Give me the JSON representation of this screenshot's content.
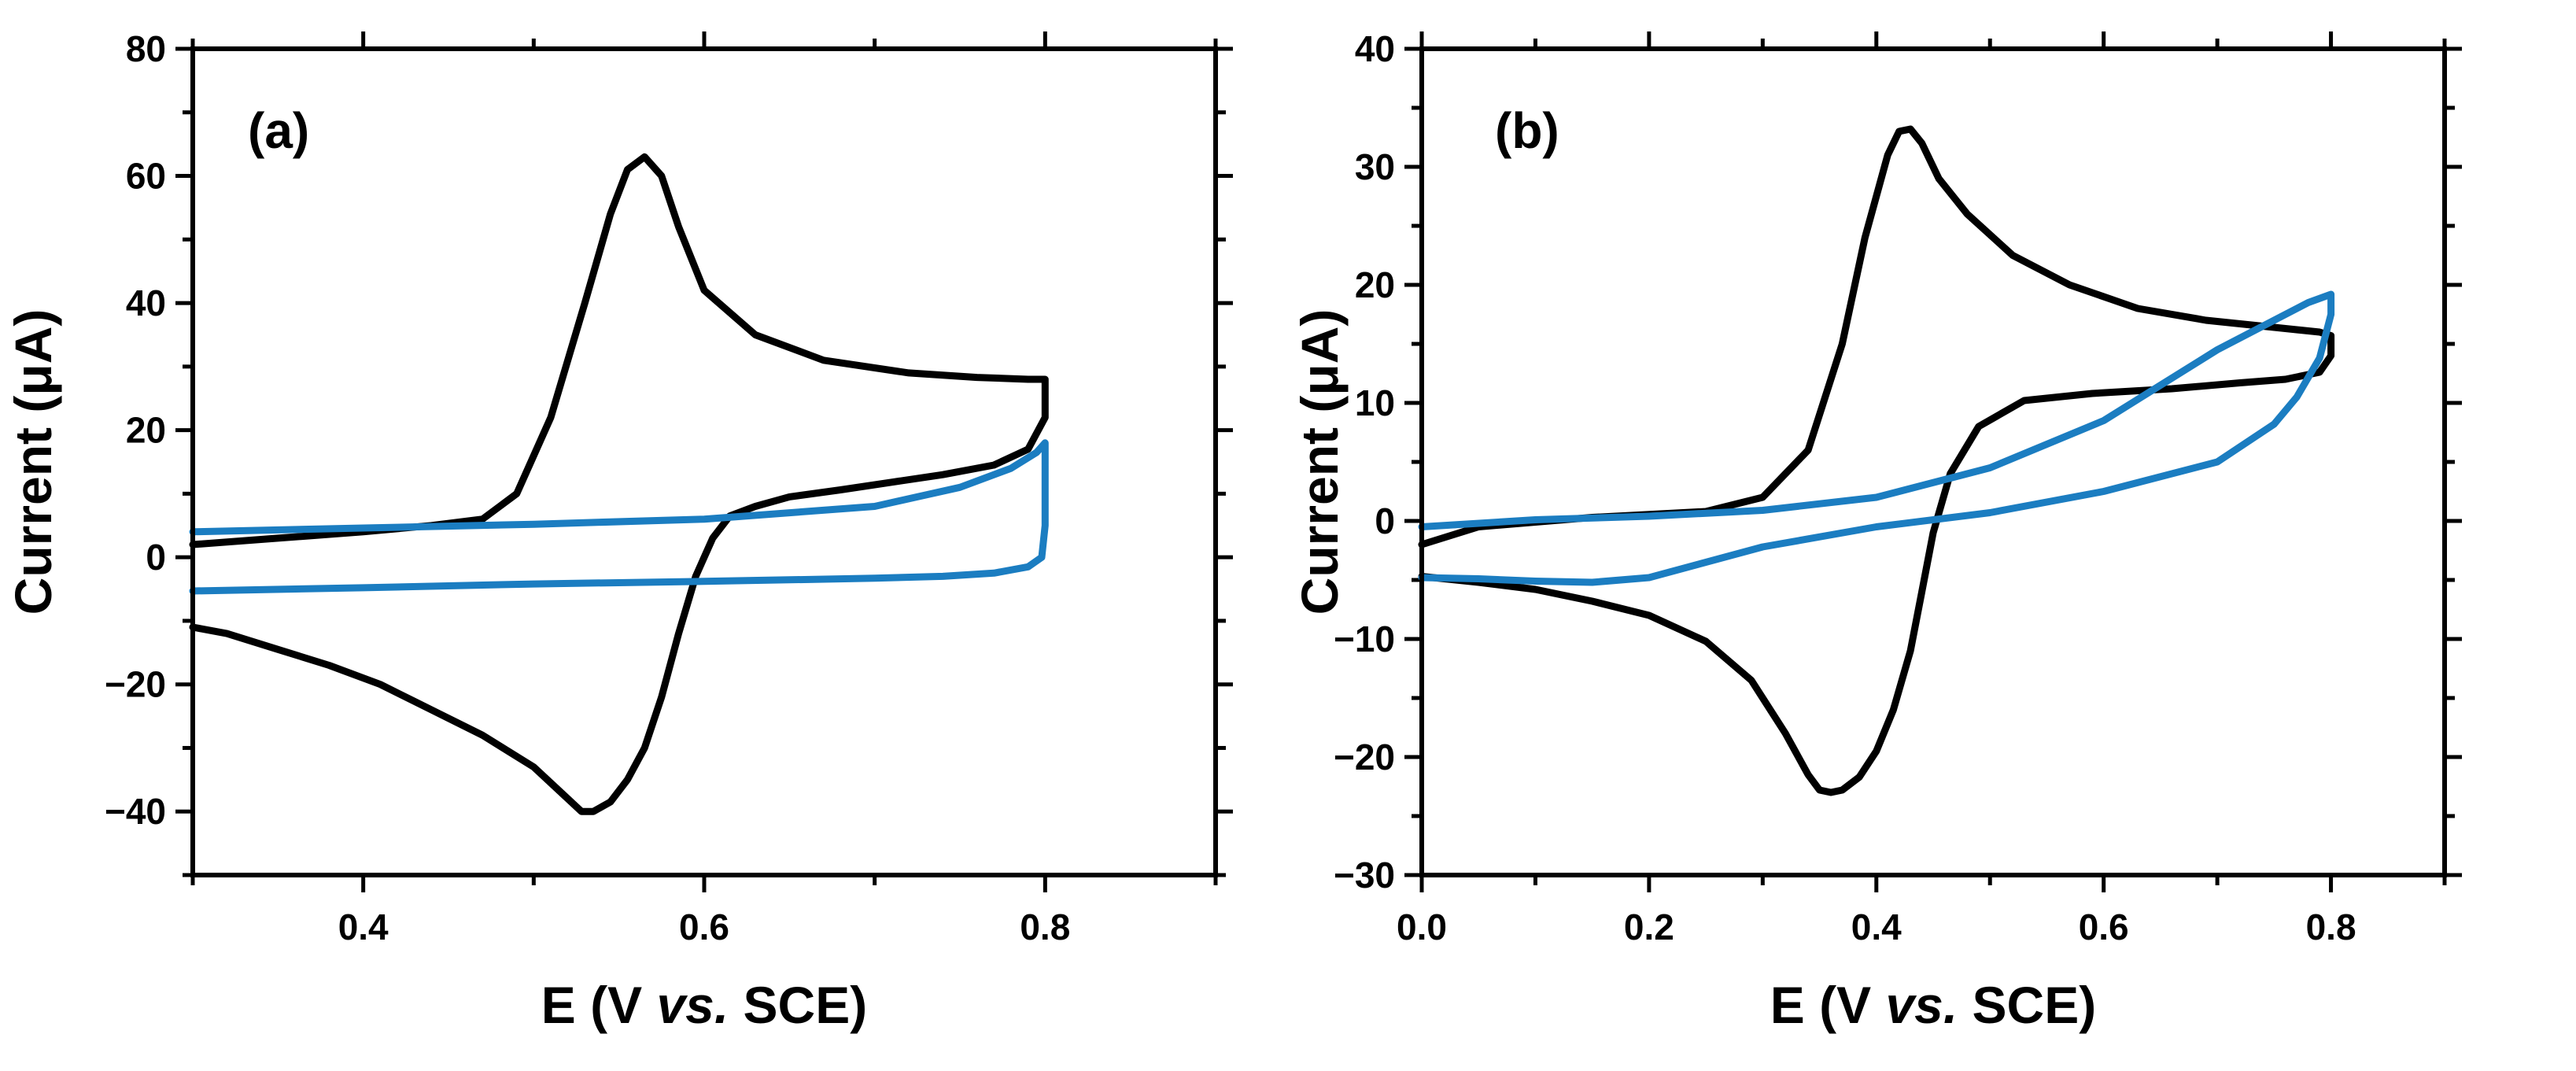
{
  "chart_data": [
    {
      "type": "line",
      "panel_label": "(a)",
      "xlabel": "E (V vs. SCE)",
      "xlabel_parts": {
        "prefix": "E (V ",
        "italic": "vs.",
        "suffix": " SCE)"
      },
      "ylabel": "Current (μA)",
      "xlim": [
        0.3,
        0.9
      ],
      "ylim": [
        -50,
        80
      ],
      "x_major_ticks": [
        0.4,
        0.6,
        0.8
      ],
      "x_tick_labels": [
        "0.4",
        "0.6",
        "0.8"
      ],
      "y_major_ticks": [
        -40,
        -20,
        0,
        20,
        40,
        60,
        80
      ],
      "y_tick_labels": [
        "−40",
        "−20",
        "0",
        "20",
        "40",
        "60",
        "80"
      ],
      "series": [
        {
          "name": "black",
          "color": "#000000",
          "x": [
            0.3,
            0.35,
            0.4,
            0.44,
            0.47,
            0.49,
            0.51,
            0.53,
            0.545,
            0.555,
            0.565,
            0.575,
            0.585,
            0.6,
            0.63,
            0.67,
            0.72,
            0.76,
            0.79,
            0.8,
            0.8,
            0.8,
            0.79,
            0.77,
            0.74,
            0.71,
            0.68,
            0.65,
            0.63,
            0.615,
            0.605,
            0.595,
            0.585,
            0.575,
            0.565,
            0.555,
            0.545,
            0.535,
            0.528,
            0.52,
            0.5,
            0.47,
            0.44,
            0.41,
            0.38,
            0.35,
            0.32,
            0.3
          ],
          "y": [
            2,
            3,
            4,
            5,
            6,
            10,
            22,
            40,
            54,
            61,
            63,
            60,
            52,
            42,
            35,
            31,
            29,
            28.3,
            28,
            28,
            26,
            22,
            17,
            14.5,
            13,
            11.8,
            10.6,
            9.5,
            8,
            6.5,
            3,
            -3,
            -12,
            -22,
            -30,
            -35,
            -38.5,
            -40,
            -40,
            -38,
            -33,
            -28,
            -24,
            -20,
            -17,
            -14.5,
            -12,
            -11
          ]
        },
        {
          "name": "blue",
          "color": "#1B7DC1",
          "x": [
            0.3,
            0.4,
            0.5,
            0.6,
            0.7,
            0.75,
            0.78,
            0.795,
            0.8,
            0.8,
            0.798,
            0.79,
            0.77,
            0.74,
            0.7,
            0.6,
            0.5,
            0.4,
            0.3
          ],
          "y": [
            4,
            4.6,
            5.2,
            6,
            8,
            11,
            14,
            16.5,
            18,
            5,
            0,
            -1.5,
            -2.5,
            -3,
            -3.3,
            -3.8,
            -4.2,
            -4.8,
            -5.3
          ]
        }
      ]
    },
    {
      "type": "line",
      "panel_label": "(b)",
      "xlabel": "E (V vs. SCE)",
      "xlabel_parts": {
        "prefix": "E (V ",
        "italic": "vs.",
        "suffix": " SCE)"
      },
      "ylabel": "Current (μA)",
      "xlim": [
        0.0,
        0.9
      ],
      "ylim": [
        -30,
        40
      ],
      "x_major_ticks": [
        0.0,
        0.2,
        0.4,
        0.6,
        0.8
      ],
      "x_tick_labels": [
        "0.0",
        "0.2",
        "0.4",
        "0.6",
        "0.8"
      ],
      "y_major_ticks": [
        -30,
        -20,
        -10,
        0,
        10,
        20,
        30,
        40
      ],
      "y_tick_labels": [
        "−30",
        "−20",
        "−10",
        "0",
        "10",
        "20",
        "30",
        "40"
      ],
      "series": [
        {
          "name": "black",
          "color": "#000000",
          "x": [
            0.0,
            0.05,
            0.15,
            0.25,
            0.3,
            0.34,
            0.37,
            0.39,
            0.41,
            0.42,
            0.43,
            0.44,
            0.455,
            0.48,
            0.52,
            0.57,
            0.63,
            0.69,
            0.75,
            0.79,
            0.8,
            0.8,
            0.79,
            0.76,
            0.72,
            0.66,
            0.59,
            0.53,
            0.49,
            0.465,
            0.45,
            0.44,
            0.43,
            0.415,
            0.4,
            0.385,
            0.37,
            0.36,
            0.35,
            0.34,
            0.32,
            0.29,
            0.25,
            0.2,
            0.15,
            0.1,
            0.05,
            0.0
          ],
          "y": [
            -2,
            -0.5,
            0.3,
            0.8,
            2,
            6,
            15,
            24,
            31,
            33,
            33.2,
            32,
            29,
            26,
            22.5,
            20,
            18,
            17,
            16.4,
            16,
            15.7,
            14,
            12.6,
            12,
            11.7,
            11.2,
            10.8,
            10.2,
            8,
            4,
            -1,
            -6,
            -11,
            -16,
            -19.5,
            -21.7,
            -22.8,
            -23,
            -22.8,
            -21.5,
            -18,
            -13.5,
            -10.2,
            -8,
            -6.8,
            -5.8,
            -5.2,
            -4.7
          ]
        },
        {
          "name": "blue",
          "color": "#1B7DC1",
          "x": [
            0.0,
            0.1,
            0.2,
            0.3,
            0.4,
            0.5,
            0.6,
            0.65,
            0.7,
            0.75,
            0.78,
            0.8,
            0.8,
            0.79,
            0.77,
            0.75,
            0.7,
            0.6,
            0.5,
            0.4,
            0.3,
            0.2,
            0.15,
            0.1,
            0.05,
            0.0
          ],
          "y": [
            -0.5,
            0.1,
            0.4,
            0.9,
            2,
            4.5,
            8.5,
            11.5,
            14.5,
            17,
            18.5,
            19.2,
            17.5,
            13.8,
            10.5,
            8.2,
            5,
            2.5,
            0.7,
            -0.5,
            -2.2,
            -4.8,
            -5.2,
            -5.1,
            -4.9,
            -4.8
          ]
        }
      ]
    }
  ]
}
